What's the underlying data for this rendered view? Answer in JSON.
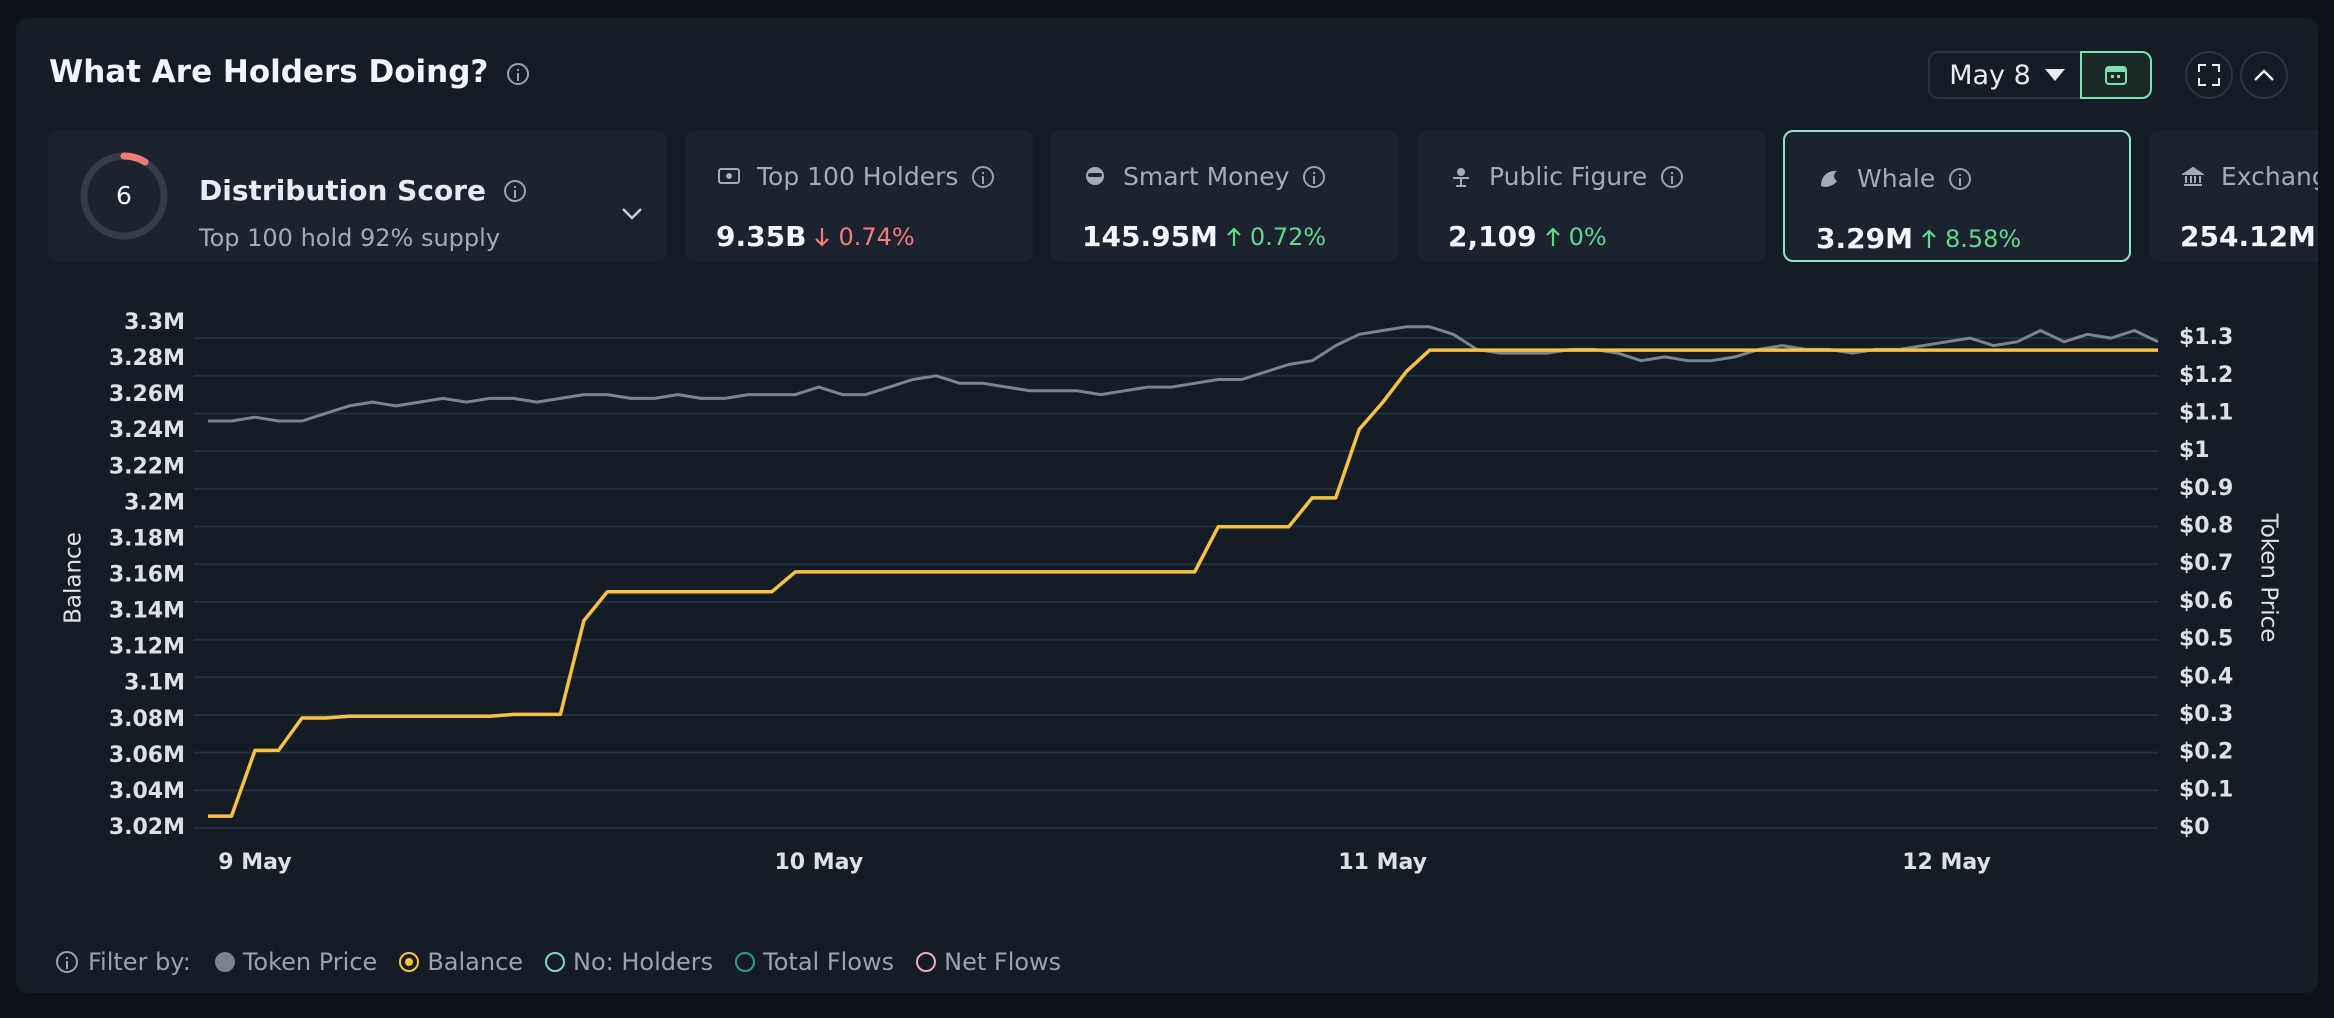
{
  "header": {
    "title": "What Are Holders Doing?",
    "date": "May 8"
  },
  "distribution": {
    "score": 6,
    "title": "Distribution Score",
    "subtitle": "Top 100 hold 92% supply"
  },
  "cards": [
    {
      "label": "Top 100 Holders",
      "value": "9.35B",
      "change": "0.74%",
      "trend": "down"
    },
    {
      "label": "Smart Money",
      "value": "145.95M",
      "change": "0.72%",
      "trend": "up"
    },
    {
      "label": "Public Figure",
      "value": "2,109",
      "change": "0%",
      "trend": "up"
    },
    {
      "label": "Whale",
      "value": "3.29M",
      "change": "8.58%",
      "trend": "up",
      "selected": true
    },
    {
      "label": "Exchange",
      "value": "254.12M"
    }
  ],
  "chart_data": {
    "type": "line",
    "y_label": "Balance",
    "y2_label": "Token Price",
    "categories": [
      null,
      null,
      "9 May",
      null,
      null,
      null,
      null,
      null,
      null,
      null,
      null,
      null,
      null,
      null,
      null,
      null,
      null,
      null,
      null,
      null,
      null,
      null,
      null,
      null,
      null,
      null,
      "10 May",
      null,
      null,
      null,
      null,
      null,
      null,
      null,
      null,
      null,
      null,
      null,
      null,
      null,
      null,
      null,
      null,
      null,
      null,
      null,
      null,
      null,
      null,
      null,
      "11 May",
      null,
      null,
      null,
      null,
      null,
      null,
      null,
      null,
      null,
      null,
      null,
      null,
      null,
      null,
      null,
      null,
      null,
      null,
      null,
      null,
      null,
      null,
      null,
      "12 May",
      null,
      null,
      null,
      null,
      null,
      null,
      null,
      null,
      null
    ],
    "series": [
      {
        "name": "Token Price",
        "color": "#7a8391",
        "axis": "y2",
        "values": [
          1.08,
          1.08,
          1.09,
          1.08,
          1.08,
          1.1,
          1.12,
          1.13,
          1.12,
          1.13,
          1.14,
          1.13,
          1.14,
          1.14,
          1.13,
          1.14,
          1.15,
          1.15,
          1.14,
          1.14,
          1.15,
          1.14,
          1.14,
          1.15,
          1.15,
          1.15,
          1.17,
          1.15,
          1.15,
          1.17,
          1.19,
          1.2,
          1.18,
          1.18,
          1.17,
          1.16,
          1.16,
          1.16,
          1.15,
          1.16,
          1.17,
          1.17,
          1.18,
          1.19,
          1.19,
          1.21,
          1.23,
          1.24,
          1.28,
          1.31,
          1.32,
          1.33,
          1.33,
          1.31,
          1.27,
          1.26,
          1.26,
          1.26,
          1.27,
          1.27,
          1.26,
          1.24,
          1.25,
          1.24,
          1.24,
          1.25,
          1.27,
          1.28,
          1.27,
          1.27,
          1.26,
          1.27,
          1.27,
          1.28,
          1.29,
          1.3,
          1.28,
          1.29,
          1.32,
          1.29,
          1.31,
          1.3,
          1.32,
          1.29
        ]
      },
      {
        "name": "Balance",
        "color": "#f5c242",
        "axis": "y",
        "values": [
          3026600,
          3026600,
          3063000,
          3063000,
          3081000,
          3081000,
          3082000,
          3082000,
          3082000,
          3082000,
          3082000,
          3082000,
          3082000,
          3083000,
          3083000,
          3083000,
          3135000,
          3151000,
          3151000,
          3151000,
          3151000,
          3151000,
          3151000,
          3151000,
          3151000,
          3162000,
          3162000,
          3162000,
          3162000,
          3162000,
          3162000,
          3162000,
          3162000,
          3162000,
          3162000,
          3162000,
          3162000,
          3162000,
          3162000,
          3162000,
          3162000,
          3162000,
          3162000,
          3187000,
          3187000,
          3187000,
          3187000,
          3203000,
          3203000,
          3241000,
          3256000,
          3273000,
          3285000,
          3285000,
          3285000,
          3285000,
          3285000,
          3285000,
          3285000,
          3285000,
          3285000,
          3285000,
          3285000,
          3285000,
          3285000,
          3285000,
          3285000,
          3285000,
          3285000,
          3285000,
          3285000,
          3285000,
          3285000,
          3285000,
          3285000,
          3285000,
          3285000,
          3285000,
          3285000,
          3285000,
          3285000,
          3285000,
          3285000,
          3285000
        ]
      }
    ],
    "ylim": [
      3020000,
      3300000
    ],
    "yticks": [
      {
        "value": 3300000,
        "label": "3.3M"
      },
      {
        "value": 3280000,
        "label": "3.28M"
      },
      {
        "value": 3260000,
        "label": "3.26M"
      },
      {
        "value": 3240000,
        "label": "3.24M"
      },
      {
        "value": 3220000,
        "label": "3.22M"
      },
      {
        "value": 3200000,
        "label": "3.2M"
      },
      {
        "value": 3180000,
        "label": "3.18M"
      },
      {
        "value": 3160000,
        "label": "3.16M"
      },
      {
        "value": 3140000,
        "label": "3.14M"
      },
      {
        "value": 3120000,
        "label": "3.12M"
      },
      {
        "value": 3100000,
        "label": "3.1M"
      },
      {
        "value": 3080000,
        "label": "3.08M"
      },
      {
        "value": 3060000,
        "label": "3.06M"
      },
      {
        "value": 3040000,
        "label": "3.04M"
      },
      {
        "value": 3020000,
        "label": "3.02M"
      }
    ],
    "y2lim": [
      0,
      1.34
    ],
    "y2ticks": [
      {
        "value": 1.3,
        "label": "$1.3"
      },
      {
        "value": 1.2,
        "label": "$1.2"
      },
      {
        "value": 1.1,
        "label": "$1.1"
      },
      {
        "value": 1,
        "label": "$1"
      },
      {
        "value": 0.9,
        "label": "$0.9"
      },
      {
        "value": 0.8,
        "label": "$0.8"
      },
      {
        "value": 0.7,
        "label": "$0.7"
      },
      {
        "value": 0.6,
        "label": "$0.6"
      },
      {
        "value": 0.5,
        "label": "$0.5"
      },
      {
        "value": 0.4,
        "label": "$0.4"
      },
      {
        "value": 0.3,
        "label": "$0.3"
      },
      {
        "value": 0.2,
        "label": "$0.2"
      },
      {
        "value": 0.1,
        "label": "$0.1"
      },
      {
        "value": 0,
        "label": "$0"
      }
    ],
    "grid": "y2"
  },
  "filter": {
    "label": "Filter by:",
    "others": [
      "No: Holders",
      "Total Flows",
      "Net Flows"
    ],
    "other_colors": [
      "#7fd8d0",
      "#2f9e88",
      "#f2a7c8"
    ]
  }
}
